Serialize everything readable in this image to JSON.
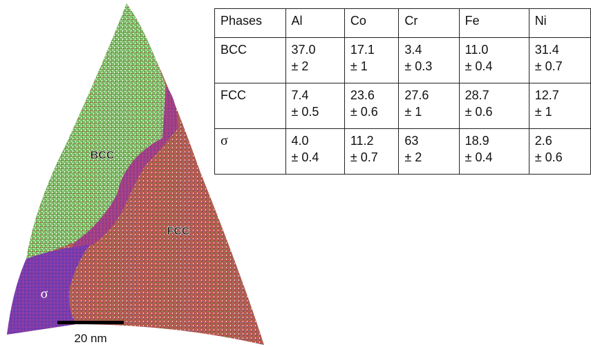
{
  "figure": {
    "labels": {
      "bcc": "BCC",
      "fcc": "FCC",
      "sigma": "σ"
    },
    "scale_bar": "20 nm"
  },
  "table": {
    "header": [
      "Phases",
      "Al",
      "Co",
      "Cr",
      "Fe",
      "Ni"
    ],
    "rows": [
      [
        [
          "BCC"
        ],
        [
          "37.0",
          "± 2"
        ],
        [
          "17.1",
          "± 1"
        ],
        [
          "3.4",
          "± 0.3"
        ],
        [
          "11.0",
          "± 0.4"
        ],
        [
          "31.4",
          "± 0.7"
        ]
      ],
      [
        [
          "FCC"
        ],
        [
          "7.4",
          "± 0.5"
        ],
        [
          "23.6",
          "± 0.6"
        ],
        [
          "27.6",
          "± 1"
        ],
        [
          "28.7",
          "± 0.6"
        ],
        [
          "12.7",
          "± 1"
        ]
      ],
      [
        [
          "σ"
        ],
        [
          "4.0",
          "± 0.4"
        ],
        [
          "11.2",
          "± 0.7"
        ],
        [
          "63",
          "± 2"
        ],
        [
          "18.9",
          "± 0.4"
        ],
        [
          "2.6",
          "± 0.6"
        ]
      ]
    ]
  }
}
